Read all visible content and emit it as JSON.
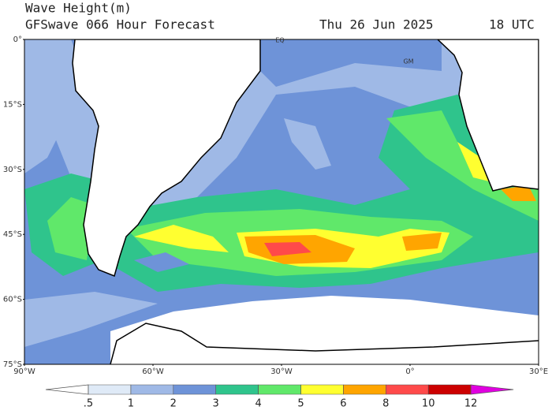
{
  "header": {
    "title": "Wave Height(m)",
    "subtitle": "GFSwave 066 Hour Forecast",
    "date": "Thu 26 Jun 2025",
    "time": "18 UTC"
  },
  "map": {
    "lat_labels": [
      "0°",
      "15°S",
      "30°S",
      "45°S",
      "60°S",
      "75°S"
    ],
    "lon_labels": [
      "90°W",
      "60°W",
      "30°W",
      "0°",
      "30°E"
    ],
    "markers": [
      "EQ",
      "GM"
    ]
  },
  "colorbar": {
    "levels": [
      {
        "value": 0.5,
        "label": ".5"
      },
      1,
      2,
      3,
      4,
      5,
      6,
      8,
      10,
      12
    ],
    "colors": [
      "#ffffff",
      "#dfeaf7",
      "#9fb9e6",
      "#6e93d8",
      "#2fc48c",
      "#60e86a",
      "#ffff30",
      "#ffa500",
      "#ff4a4a",
      "#cc0000",
      "#e000e0"
    ]
  }
}
